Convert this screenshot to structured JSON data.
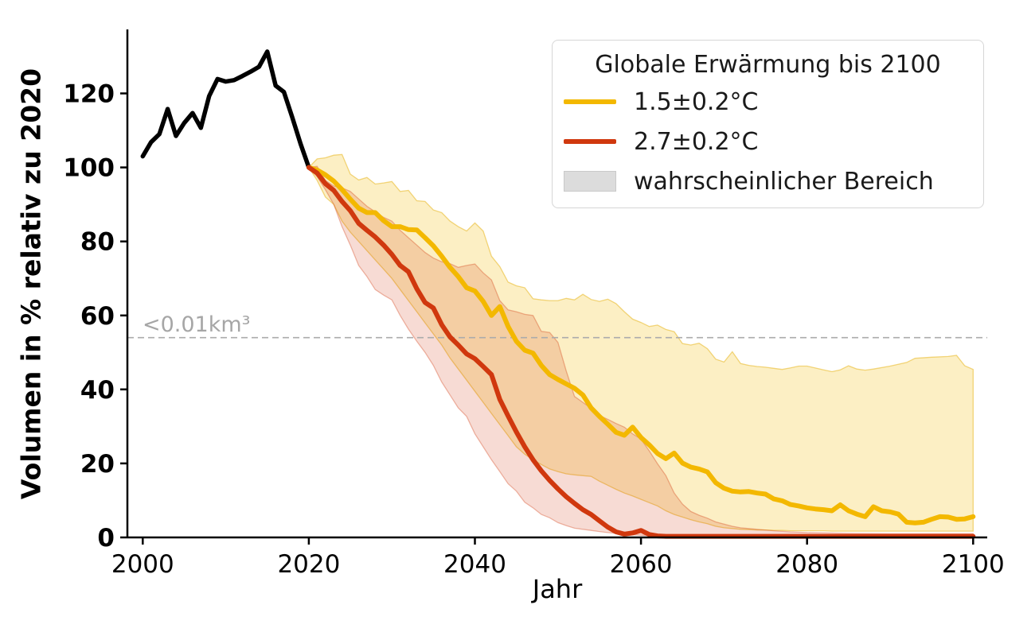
{
  "chart_data": {
    "type": "line",
    "title": "",
    "xlabel": "Jahr",
    "ylabel": "Volumen in % relativ zu 2020",
    "xlim": [
      1998.15,
      2101.7
    ],
    "ylim": [
      0,
      137.3
    ],
    "xticks": [
      2000,
      2020,
      2040,
      2060,
      2080,
      2100
    ],
    "yticks": [
      0,
      20,
      40,
      60,
      80,
      100,
      120
    ],
    "grid": false,
    "threshold": {
      "value": 54,
      "label": "<0.01km³",
      "line_color": "#ababab",
      "label_color": "#a6a6a6"
    },
    "legend": {
      "title": "Globale Erwärmung bis 2100",
      "position": "upper right",
      "entries": [
        {
          "label": "1.5±0.2°C",
          "type": "line",
          "color": "#f3b800"
        },
        {
          "label": "2.7±0.2°C",
          "type": "line",
          "color": "#d0380e"
        },
        {
          "label": "wahrscheinlicher Bereich",
          "type": "patch",
          "color": "#dcdcdc"
        }
      ]
    },
    "series": [
      {
        "id": "historical",
        "label": "",
        "color": "#000000",
        "x": [
          2000,
          2001,
          2002,
          2003,
          2004,
          2005,
          2006,
          2007,
          2008,
          2009,
          2010,
          2011,
          2012,
          2013,
          2014,
          2015,
          2016,
          2017,
          2018,
          2019,
          2020
        ],
        "y": [
          103,
          106.8,
          109,
          115.8,
          108.5,
          112,
          114.7,
          110.7,
          119.3,
          123.9,
          123.2,
          123.6,
          124.7,
          125.9,
          127.2,
          131.3,
          122.1,
          120.4,
          113.6,
          106.4,
          100
        ]
      },
      {
        "id": "warming-1.5c",
        "label": "1.5±0.2°C",
        "color": "#f3b800",
        "band_fill": "rgba(244,187,10,0.24)",
        "band_edge": "rgba(230,175,10,0.5)",
        "x": [
          2020,
          2021,
          2022,
          2023,
          2024,
          2025,
          2026,
          2027,
          2028,
          2029,
          2030,
          2031,
          2032,
          2033,
          2034,
          2035,
          2036,
          2037,
          2038,
          2039,
          2040,
          2041,
          2042,
          2043,
          2044,
          2045,
          2046,
          2047,
          2048,
          2049,
          2050,
          2051,
          2052,
          2053,
          2054,
          2055,
          2056,
          2057,
          2058,
          2059,
          2060,
          2061,
          2062,
          2063,
          2064,
          2065,
          2066,
          2067,
          2068,
          2069,
          2070,
          2071,
          2072,
          2073,
          2074,
          2075,
          2076,
          2077,
          2078,
          2079,
          2080,
          2081,
          2082,
          2083,
          2084,
          2085,
          2086,
          2087,
          2088,
          2089,
          2090,
          2091,
          2092,
          2093,
          2094,
          2095,
          2096,
          2097,
          2098,
          2099,
          2100
        ],
        "y": [
          100,
          99.3,
          98,
          96.3,
          94,
          91.4,
          89,
          87.8,
          87.8,
          85.6,
          84,
          84,
          83.2,
          83.1,
          81,
          78.8,
          76,
          73,
          70.5,
          67.5,
          66.6,
          63.8,
          60,
          62.4,
          57,
          53,
          50.6,
          49.8,
          46.5,
          44,
          42.7,
          41.5,
          40.3,
          38.5,
          35,
          32.7,
          30.6,
          28.4,
          27.6,
          29.8,
          27,
          25,
          22.7,
          21.3,
          22.8,
          20.1,
          19,
          18.5,
          17.7,
          14.8,
          13.3,
          12.5,
          12.3,
          12.4,
          12,
          11.7,
          10.4,
          9.9,
          8.9,
          8.5,
          8,
          7.7,
          7.5,
          7.2,
          8.8,
          7.2,
          6.3,
          5.6,
          8.3,
          7.2,
          6.9,
          6.3,
          4.1,
          3.9,
          4.1,
          4.9,
          5.6,
          5.5,
          4.9,
          5,
          5.6
        ],
        "band": [
          [
            2020,
            100,
            100
          ],
          [
            2021,
            96.5,
            102.3
          ],
          [
            2022,
            92,
            102.6
          ],
          [
            2023,
            90,
            103.3
          ],
          [
            2024,
            85.5,
            103.5
          ],
          [
            2025,
            82.5,
            98.2
          ],
          [
            2026,
            80,
            96.6
          ],
          [
            2027,
            77.5,
            97.3
          ],
          [
            2028,
            75,
            95.5
          ],
          [
            2029,
            72.5,
            95.8
          ],
          [
            2030,
            70,
            96.2
          ],
          [
            2031,
            67,
            93.5
          ],
          [
            2032,
            64,
            93.8
          ],
          [
            2033,
            61,
            91
          ],
          [
            2034,
            58,
            90.8
          ],
          [
            2035,
            55,
            88.5
          ],
          [
            2036,
            52,
            87.8
          ],
          [
            2037,
            48.5,
            85.5
          ],
          [
            2038,
            45.5,
            84
          ],
          [
            2039,
            42.5,
            82.8
          ],
          [
            2040,
            39.5,
            85
          ],
          [
            2041,
            36.5,
            82.8
          ],
          [
            2042,
            33.5,
            76
          ],
          [
            2043,
            30.5,
            73.2
          ],
          [
            2044,
            27.5,
            69
          ],
          [
            2045,
            24.5,
            68
          ],
          [
            2046,
            22.5,
            67.5
          ],
          [
            2047,
            21,
            64.5
          ],
          [
            2048,
            19.7,
            64.2
          ],
          [
            2049,
            18.5,
            64
          ],
          [
            2050,
            17.8,
            64
          ],
          [
            2051,
            17.2,
            64.6
          ],
          [
            2052,
            16.9,
            64.2
          ],
          [
            2053,
            16.7,
            65.7
          ],
          [
            2054,
            16.5,
            64.3
          ],
          [
            2055,
            15.2,
            63.8
          ],
          [
            2056,
            14.1,
            64.4
          ],
          [
            2057,
            13,
            63.2
          ],
          [
            2058,
            12,
            61
          ],
          [
            2059,
            11.2,
            59
          ],
          [
            2060,
            10.3,
            58.1
          ],
          [
            2061,
            9.4,
            57
          ],
          [
            2062,
            8.5,
            57.4
          ],
          [
            2063,
            7.2,
            56.2
          ],
          [
            2064,
            6.2,
            55.6
          ],
          [
            2065,
            5.5,
            52.4
          ],
          [
            2066,
            4.8,
            52
          ],
          [
            2067,
            4.2,
            52.5
          ],
          [
            2068,
            3.7,
            51
          ],
          [
            2069,
            3,
            48.2
          ],
          [
            2070,
            2.6,
            47.4
          ],
          [
            2071,
            2.4,
            50.2
          ],
          [
            2072,
            2.2,
            47
          ],
          [
            2073,
            2.1,
            46.5
          ],
          [
            2074,
            2,
            46.2
          ],
          [
            2075,
            2,
            46
          ],
          [
            2076,
            1.9,
            45.7
          ],
          [
            2077,
            1.9,
            45.4
          ],
          [
            2078,
            1.8,
            45.8
          ],
          [
            2079,
            1.8,
            46.3
          ],
          [
            2080,
            1.8,
            46.3
          ],
          [
            2082,
            1.8,
            45.3
          ],
          [
            2083,
            1.7,
            44.8
          ],
          [
            2084,
            1.7,
            45.3
          ],
          [
            2085,
            1.7,
            46.4
          ],
          [
            2086,
            1.7,
            45.5
          ],
          [
            2087,
            1.7,
            45.2
          ],
          [
            2088,
            1.7,
            45.5
          ],
          [
            2090,
            1.7,
            46.3
          ],
          [
            2092,
            1.7,
            47.3
          ],
          [
            2093,
            1.7,
            48.4
          ],
          [
            2095,
            1.7,
            48.7
          ],
          [
            2097,
            1.7,
            48.9
          ],
          [
            2098,
            1.7,
            49.2
          ],
          [
            2099,
            1.7,
            46.4
          ],
          [
            2100,
            1.7,
            45.4
          ]
        ]
      },
      {
        "id": "warming-2.7c",
        "label": "2.7±0.2°C",
        "color": "#d0380e",
        "band_fill": "rgba(208,56,14,0.18)",
        "band_edge": "rgba(208,56,14,0.35)",
        "x": [
          2020,
          2021,
          2022,
          2023,
          2024,
          2025,
          2026,
          2027,
          2028,
          2029,
          2030,
          2031,
          2032,
          2033,
          2034,
          2035,
          2036,
          2037,
          2038,
          2039,
          2040,
          2041,
          2042,
          2043,
          2044,
          2045,
          2046,
          2047,
          2048,
          2049,
          2050,
          2051,
          2052,
          2053,
          2054,
          2055,
          2056,
          2057,
          2058,
          2059,
          2060,
          2061,
          2062,
          2063,
          2064,
          2065,
          2066,
          2067,
          2068,
          2069,
          2070,
          2071,
          2072,
          2073,
          2074,
          2075,
          2076,
          2077,
          2078,
          2079,
          2080,
          2081,
          2082,
          2083,
          2084,
          2085,
          2086,
          2087,
          2088,
          2089,
          2090,
          2091,
          2092,
          2093,
          2094,
          2095,
          2096,
          2097,
          2098,
          2099,
          2100
        ],
        "y": [
          100,
          98.5,
          95.6,
          93.8,
          90.8,
          88.3,
          84.9,
          83,
          81.2,
          79,
          76.5,
          73.5,
          71.8,
          67.2,
          63.5,
          62,
          57.5,
          54.2,
          52,
          49.6,
          48.3,
          46.2,
          44,
          37.3,
          32.8,
          28.5,
          24.5,
          21,
          18,
          15.4,
          13.1,
          11,
          9.2,
          7.5,
          6.2,
          4.5,
          2.8,
          1.5,
          0.9,
          1.2,
          1.9,
          0.8,
          0.4,
          0.3,
          0.3,
          0.3,
          0.3,
          0.3,
          0.3,
          0.3,
          0.3,
          0.3,
          0.3,
          0.3,
          0.3,
          0.3,
          0.3,
          0.3,
          0.3,
          0.3,
          0.3,
          0.3,
          0.3,
          0.3,
          0.3,
          0.3,
          0.3,
          0.3,
          0.3,
          0.3,
          0.3,
          0.3,
          0.3,
          0.3,
          0.3,
          0.3,
          0.3,
          0.3,
          0.3,
          0.3,
          0.3
        ],
        "band": [
          [
            2020,
            100,
            100
          ],
          [
            2021,
            97.5,
            100.3
          ],
          [
            2022,
            94,
            96.5
          ],
          [
            2023,
            90,
            95
          ],
          [
            2024,
            84,
            94.5
          ],
          [
            2025,
            79,
            93.5
          ],
          [
            2026,
            73.5,
            91.5
          ],
          [
            2027,
            70.5,
            89.5
          ],
          [
            2028,
            67,
            88
          ],
          [
            2029,
            65.5,
            86.5
          ],
          [
            2030,
            64.2,
            85.5
          ],
          [
            2031,
            60,
            83
          ],
          [
            2032,
            56.3,
            81
          ],
          [
            2033,
            53,
            79
          ],
          [
            2034,
            50,
            77
          ],
          [
            2035,
            46.5,
            75.5
          ],
          [
            2036,
            42,
            74.5
          ],
          [
            2037,
            38.5,
            74
          ],
          [
            2038,
            35,
            73
          ],
          [
            2039,
            32.7,
            73.5
          ],
          [
            2040,
            28,
            73.9
          ],
          [
            2041,
            24.5,
            71.5
          ],
          [
            2042,
            21,
            69.6
          ],
          [
            2043,
            17.8,
            64
          ],
          [
            2044,
            14.5,
            61.5
          ],
          [
            2045,
            12.5,
            61
          ],
          [
            2046,
            9.5,
            60.3
          ],
          [
            2047,
            8,
            60
          ],
          [
            2048,
            6.2,
            55.7
          ],
          [
            2049,
            5.3,
            55.4
          ],
          [
            2050,
            4,
            52.7
          ],
          [
            2051,
            3.2,
            45
          ],
          [
            2052,
            2.5,
            38.1
          ],
          [
            2053,
            2.2,
            36.5
          ],
          [
            2054,
            1.9,
            34.9
          ],
          [
            2055,
            1.6,
            33
          ],
          [
            2056,
            1.3,
            31.9
          ],
          [
            2057,
            1.1,
            30.8
          ],
          [
            2058,
            0.9,
            29.8
          ],
          [
            2059,
            0.7,
            28
          ],
          [
            2060,
            0.6,
            26.6
          ],
          [
            2061,
            0.5,
            23.4
          ],
          [
            2062,
            0.4,
            19.9
          ],
          [
            2063,
            0.4,
            16.7
          ],
          [
            2064,
            0.3,
            12
          ],
          [
            2065,
            0.3,
            9
          ],
          [
            2066,
            0.3,
            7
          ],
          [
            2067,
            0.3,
            6
          ],
          [
            2068,
            0.3,
            5.2
          ],
          [
            2069,
            0.3,
            4.2
          ],
          [
            2070,
            0.3,
            3.6
          ],
          [
            2071,
            0.2,
            3
          ],
          [
            2072,
            0.2,
            2.6
          ],
          [
            2074,
            0.2,
            2.2
          ],
          [
            2076,
            0.2,
            1.8
          ],
          [
            2078,
            0.2,
            1.5
          ],
          [
            2080,
            0.2,
            1.3
          ],
          [
            2085,
            0.2,
            1.1
          ],
          [
            2090,
            0.2,
            1
          ],
          [
            2095,
            0.2,
            1
          ],
          [
            2100,
            0.2,
            1
          ]
        ]
      }
    ],
    "axis_color": "#000000"
  }
}
